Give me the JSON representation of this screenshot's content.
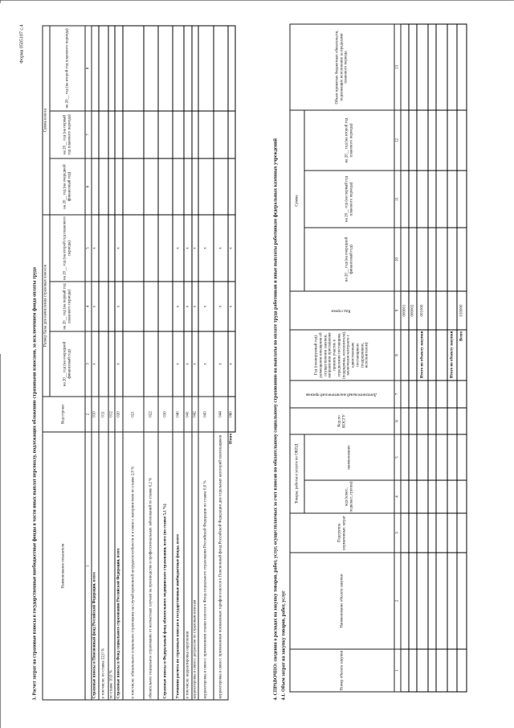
{
  "form_label": "Форма 0505107 с.4",
  "section3": {
    "title": "3. Расчет затрат на страховые взносы в государственные внебюджетные фонды в части иных выплат персоналу, подлежащих обложению страховыми взносами, за исключением фонда оплаты труда",
    "headers": {
      "name": "Наименование показателя",
      "code": "Код строки",
      "base": "Размер базы для начисления страховых взносов",
      "sum": "Сумма взноса",
      "y0": "на 20__ год (на очередной финансовый год)",
      "y1": "на 20__ год (на первый год планового периода)",
      "y2": "на 20__ год (на второй год планового периода)"
    },
    "col_numbers": [
      "1",
      "2",
      "3",
      "4",
      "5",
      "6",
      "7",
      "8"
    ],
    "rows": [
      {
        "label": "Страховые взносы в Пенсионный фонд Российской Федерации, всего",
        "code": "010",
        "bold": true,
        "marks": [
          "x",
          "x",
          "x"
        ]
      },
      {
        "label": "в том числе: по ставке 22,0 %",
        "code": "011",
        "bold": false,
        "marks": [
          "",
          "",
          ""
        ]
      },
      {
        "label": "по ставке 10,0 %",
        "code": "012",
        "bold": false,
        "marks": [
          "",
          "",
          ""
        ]
      },
      {
        "label": "Страховые взносы в Фонд социального страхования Российской Федерации, всего",
        "code": "020",
        "bold": true,
        "marks": [
          "x",
          "x",
          "x"
        ]
      },
      {
        "label": "в том числе: обязательное социальное страхование на случай временной нетрудоспособности и в связи с материнством по ставке 2,9 %",
        "code": "021",
        "bold": false,
        "marks": [
          "",
          "",
          ""
        ]
      },
      {
        "label": "обязательное социальное страхование от несчастных случаев на производстве и профессиональных заболеваний по ставке 0,2 %",
        "code": "022",
        "bold": false,
        "marks": [
          "",
          "",
          ""
        ]
      },
      {
        "label": "Страховые взносы в Федеральный фонд обязательного медицинского страхования, всего (по ставке 5,1 %)",
        "code": "030",
        "bold": true,
        "marks": [
          "",
          "",
          ""
        ]
      },
      {
        "label": "Уточнение расчета по страховым взносам в государственные внебюджетные фонды, всего",
        "code": "040",
        "bold": true,
        "marks": [
          "x",
          "x",
          "x"
        ]
      },
      {
        "label": "в том числе: корректировка округления",
        "code": "041",
        "bold": false,
        "marks": [
          "x",
          "x",
          "x"
        ]
      },
      {
        "label": "корректировка в связи с регрессом по страховым взносам",
        "code": "042",
        "bold": false,
        "marks": [
          "x",
          "x",
          "x"
        ]
      },
      {
        "label": "корректировка в связи с применением ставки взносов в Фонд социального страхования Российской Федерации по ставке 0,0 %",
        "code": "043",
        "bold": false,
        "marks": [
          "x",
          "x",
          "x"
        ]
      },
      {
        "label": "корректировка в связи с применением пониженных тарифов взносов в Пенсионный фонд Российской Федерации для отдельных категорий плательщиков",
        "code": "044",
        "bold": false,
        "marks": [
          "x",
          "x",
          "x"
        ]
      },
      {
        "label": "Итого",
        "code": "060",
        "bold": true,
        "total": true,
        "marks": [
          "x",
          "x",
          "x"
        ]
      }
    ]
  },
  "section4": {
    "title": "4. СПРАВОЧНО: сведения о расходах на закупку товаров, работ, услуг, осуществляемых за счет взносов по обязательному социальному страхованию на выплаты по оплате труда работников и иные выплаты работникам федеральных казенных учреждений",
    "subtitle": "4.1. Объем затрат на закупку товаров, работ, услуг",
    "headers": {
      "num": "Номер объекта закупки",
      "name": "Наименование объекта закупки",
      "subgroup": "Подгруппа нормативных затрат",
      "okpd": "Товары, работы и услуги по ОКПД",
      "okpd_code": "код (класс, подкласс, группа)",
      "okpd_name": "наименование",
      "kosgu": "Код по КОСГУ",
      "extra": "Дополнительный аналитический признак",
      "year": "Год (планируемый год) размещения извещения об осуществлении закупки, направления приглашения принять участие в определении поставщика (подрядчика, исполнителя), заключения контракта с единственным поставщиком (подрядчиком, исполнителем)",
      "code": "Код строки",
      "sum": "Сумма",
      "y0": "на 20__ год (на очередной финансовый год)",
      "y1": "на 20__ год (на первый год планового периода)",
      "y2": "на 20__ год (на второй год планового периода)",
      "beyond": "Объем принятых бюджетных обязательств, подлежащих исполнению за пределами планового периода"
    },
    "col_numbers": [
      "1",
      "2",
      "3",
      "4",
      "5",
      "6",
      "7",
      "8",
      "9",
      "10",
      "11",
      "12",
      "13"
    ],
    "rows": [
      {
        "label": "",
        "code": "000001"
      },
      {
        "label": "",
        "code": "000002"
      },
      {
        "label": "Итого по объекту закупки",
        "code": "001000"
      },
      {
        "label": "",
        "code": ""
      },
      {
        "label": "",
        "code": ""
      },
      {
        "label": "Итого по объекту закупки",
        "code": ""
      },
      {
        "label": "Всего",
        "code": "010000"
      }
    ]
  }
}
